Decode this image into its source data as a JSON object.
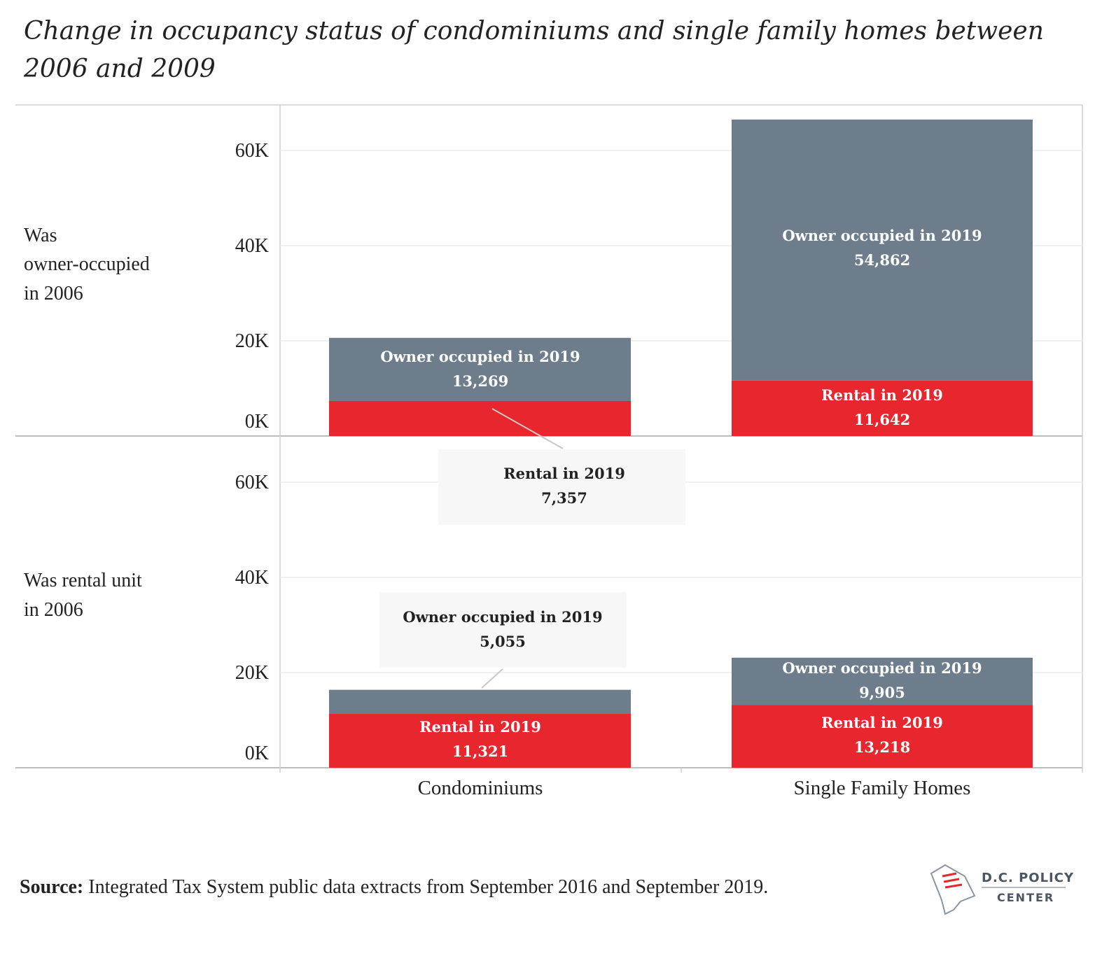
{
  "chart_data": {
    "type": "bar",
    "stacked": true,
    "title": "Change in occupancy status of condominiums and single family homes between 2006 and 2009",
    "categories": [
      "Condominiums",
      "Single Family Homes"
    ],
    "y_ticks": [
      "0K",
      "20K",
      "40K",
      "60K"
    ],
    "ylim": [
      0,
      70000
    ],
    "grid": true,
    "panels": [
      {
        "label": "Was owner-occupied in 2006",
        "label_lines": [
          "Was",
          "owner-occupied",
          "in 2006"
        ],
        "series": [
          {
            "name": "Rental in 2019",
            "values": [
              7357,
              11642
            ],
            "value_labels": [
              "7,357",
              "11,642"
            ]
          },
          {
            "name": "Owner occupied in 2019",
            "values": [
              13269,
              54862
            ],
            "value_labels": [
              "13,269",
              "54,862"
            ]
          }
        ]
      },
      {
        "label": "Was rental unit in 2006",
        "label_lines": [
          "Was rental unit",
          "in 2006"
        ],
        "series": [
          {
            "name": "Rental in 2019",
            "values": [
              11321,
              13218
            ],
            "value_labels": [
              "11,321",
              "13,218"
            ]
          },
          {
            "name": "Owner occupied in 2019",
            "values": [
              5055,
              9905
            ],
            "value_labels": [
              "5,055",
              "9,905"
            ]
          }
        ]
      }
    ],
    "colors": {
      "rental": "#e8262e",
      "owner": "#6d7d8b"
    }
  },
  "source": {
    "label": "Source:",
    "text": "Integrated Tax System public data extracts from September 2016 and September 2019."
  },
  "logo": {
    "line1": "D.C. POLICY",
    "line2": "CENTER"
  }
}
